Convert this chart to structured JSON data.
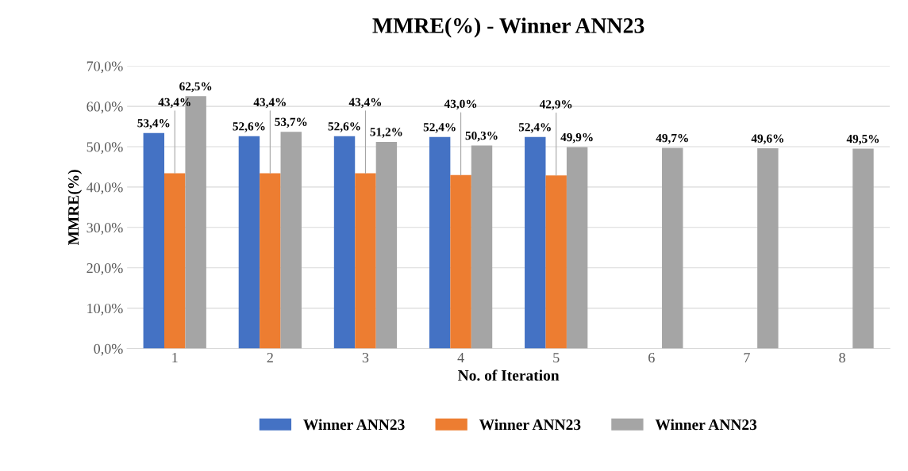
{
  "chart_data": {
    "type": "bar",
    "title": "MMRE(%) - Winner ANN23",
    "xlabel": "No. of Iteration",
    "ylabel": "MMRE(%)",
    "categories": [
      "1",
      "2",
      "3",
      "4",
      "5",
      "6",
      "7",
      "8"
    ],
    "series": [
      {
        "name": "Winner ANN23",
        "color": "#4472c4",
        "values": [
          53.4,
          52.6,
          52.6,
          52.4,
          52.4,
          null,
          null,
          null
        ],
        "value_labels": [
          "53,4%",
          "52,6%",
          "52,6%",
          "52,4%",
          "52,4%",
          null,
          null,
          null
        ]
      },
      {
        "name": "Winner ANN23",
        "color": "#ed7d31",
        "values": [
          43.4,
          43.4,
          43.4,
          43.0,
          42.9,
          null,
          null,
          null
        ],
        "value_labels": [
          "43,4%",
          "43,4%",
          "43,4%",
          "43,0%",
          "42,9%",
          null,
          null,
          null
        ]
      },
      {
        "name": "Winner ANN23",
        "color": "#a5a5a5",
        "values": [
          62.5,
          53.7,
          51.2,
          50.3,
          49.9,
          49.7,
          49.6,
          49.5
        ],
        "value_labels": [
          "62,5%",
          "53,7%",
          "51,2%",
          "50,3%",
          "49,9%",
          "49,7%",
          "49,6%",
          "49,5%"
        ]
      }
    ],
    "ylim": [
      0,
      70
    ],
    "yticks": [
      {
        "value": 0,
        "label": "0,0%"
      },
      {
        "value": 10,
        "label": "10,0%"
      },
      {
        "value": 20,
        "label": "20,0%"
      },
      {
        "value": 30,
        "label": "30,0%"
      },
      {
        "value": 40,
        "label": "40,0%"
      },
      {
        "value": 50,
        "label": "50,0%"
      },
      {
        "value": 60,
        "label": "60,0%"
      },
      {
        "value": 70,
        "label": "70,0%"
      }
    ],
    "grid": "y",
    "legend": "bottom"
  }
}
